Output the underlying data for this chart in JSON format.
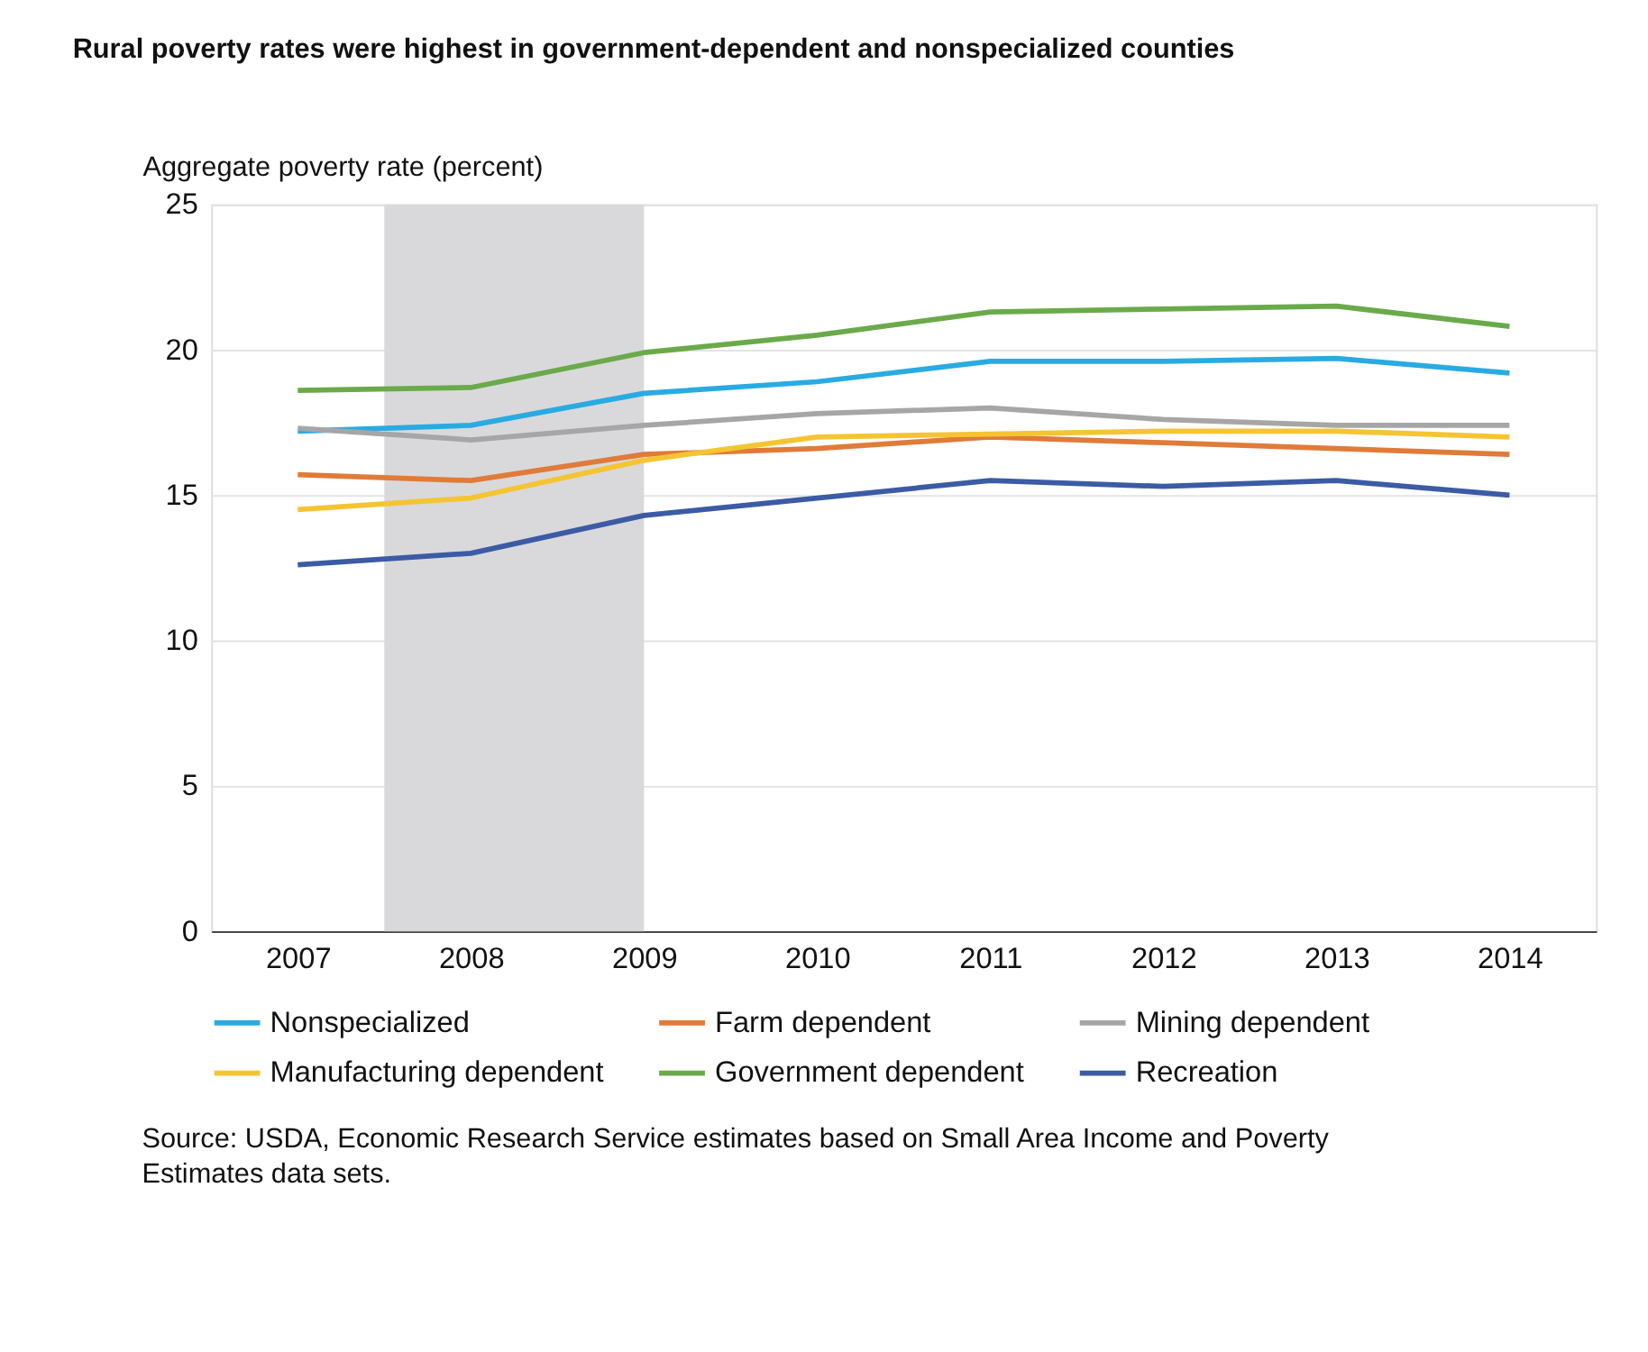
{
  "chart_data": {
    "type": "line",
    "title": "Rural poverty rates were highest in government-dependent and nonspecialized counties",
    "ylabel": "Aggregate poverty rate (percent)",
    "x": [
      2007,
      2008,
      2009,
      2010,
      2011,
      2012,
      2013,
      2014
    ],
    "xlim": [
      2006.5,
      2014.5
    ],
    "xticks": [
      2007,
      2008,
      2009,
      2010,
      2011,
      2012,
      2013,
      2014
    ],
    "ylim": [
      0,
      25
    ],
    "yticks": [
      0,
      5,
      10,
      15,
      20,
      25
    ],
    "grid": "y",
    "legend": "bottom",
    "marker": "none",
    "line_style": "solid",
    "bands": [
      {
        "axis": "x",
        "from": 2007.5,
        "to": 2009,
        "color": "#d9d9db"
      }
    ],
    "series": [
      {
        "name": "Nonspecialized",
        "color": "#29abe2",
        "values": [
          17.2,
          17.4,
          18.5,
          18.9,
          19.6,
          19.6,
          19.7,
          19.2
        ]
      },
      {
        "name": "Farm dependent",
        "color": "#e07b39",
        "values": [
          15.7,
          15.5,
          16.4,
          16.6,
          17.0,
          16.8,
          16.6,
          16.4
        ]
      },
      {
        "name": "Mining dependent",
        "color": "#a6a6a6",
        "values": [
          17.3,
          16.9,
          17.4,
          17.8,
          18.0,
          17.6,
          17.4,
          17.4
        ]
      },
      {
        "name": "Manufacturing dependent",
        "color": "#f5c433",
        "values": [
          14.5,
          14.9,
          16.2,
          17.0,
          17.1,
          17.2,
          17.2,
          17.0
        ]
      },
      {
        "name": "Government dependent",
        "color": "#6aaa4a",
        "values": [
          18.6,
          18.7,
          19.9,
          20.5,
          21.3,
          21.4,
          21.5,
          20.8
        ]
      },
      {
        "name": "Recreation",
        "color": "#3b5ba5",
        "values": [
          12.6,
          13.0,
          14.3,
          14.9,
          15.5,
          15.3,
          15.5,
          15.0
        ]
      }
    ],
    "annotations": [
      "Source: USDA, Economic Research Service estimates based on Small Area Income and Poverty Estimates data sets."
    ]
  }
}
